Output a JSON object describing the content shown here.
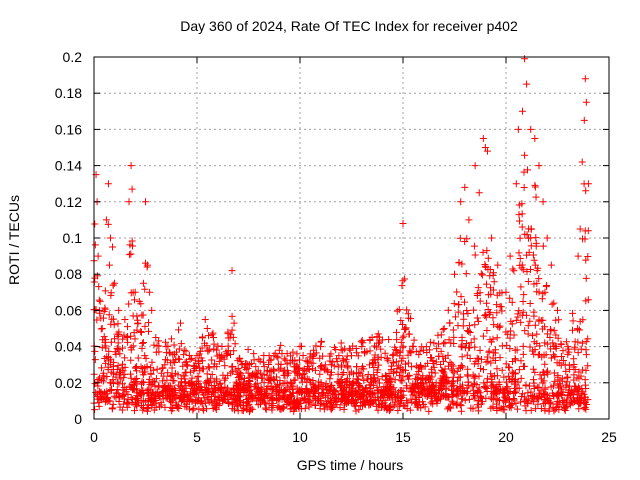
{
  "chart_data": {
    "type": "scatter",
    "title": "Day 360 of 2024, Rate Of TEC Index for receiver p402",
    "xlabel": "GPS time / hours",
    "ylabel": "ROTI / TECUs",
    "xlim": [
      0,
      25
    ],
    "ylim": [
      0,
      0.2
    ],
    "xticks": [
      "0",
      "5",
      "10",
      "15",
      "20",
      "25"
    ],
    "yticks": [
      "0",
      "0.02",
      "0.04",
      "0.06",
      "0.08",
      "0.1",
      "0.12",
      "0.14",
      "0.16",
      "0.18",
      "0.2"
    ],
    "grid": true,
    "marker": "+",
    "marker_color": "#ff0000",
    "series": [
      {
        "name": "ROTI",
        "points": [
          [
            0.1,
            0.135
          ],
          [
            0.15,
            0.12
          ],
          [
            0.2,
            0.09
          ],
          [
            0.3,
            0.065
          ],
          [
            0.4,
            0.05
          ],
          [
            0.6,
            0.11
          ],
          [
            0.7,
            0.13
          ],
          [
            0.75,
            0.085
          ],
          [
            0.8,
            0.1
          ],
          [
            0.9,
            0.095
          ],
          [
            1.0,
            0.075
          ],
          [
            1.2,
            0.06
          ],
          [
            1.5,
            0.055
          ],
          [
            1.6,
            0.045
          ],
          [
            1.7,
            0.12
          ],
          [
            1.8,
            0.14
          ],
          [
            1.85,
            0.127
          ],
          [
            2.0,
            0.07
          ],
          [
            2.2,
            0.065
          ],
          [
            2.4,
            0.075
          ],
          [
            2.5,
            0.12
          ],
          [
            2.6,
            0.085
          ],
          [
            2.7,
            0.07
          ],
          [
            2.8,
            0.06
          ],
          [
            3.0,
            0.045
          ],
          [
            3.5,
            0.04
          ],
          [
            4.2,
            0.053
          ],
          [
            4.5,
            0.03
          ],
          [
            5.0,
            0.035
          ],
          [
            5.4,
            0.055
          ],
          [
            5.5,
            0.05
          ],
          [
            5.8,
            0.045
          ],
          [
            6.2,
            0.035
          ],
          [
            6.5,
            0.048
          ],
          [
            6.7,
            0.082
          ],
          [
            6.8,
            0.053
          ],
          [
            7.2,
            0.03
          ],
          [
            8.0,
            0.033
          ],
          [
            8.5,
            0.035
          ],
          [
            9.0,
            0.038
          ],
          [
            10.0,
            0.04
          ],
          [
            10.5,
            0.036
          ],
          [
            11.0,
            0.04
          ],
          [
            11.5,
            0.036
          ],
          [
            12.0,
            0.042
          ],
          [
            12.5,
            0.035
          ],
          [
            13.0,
            0.04
          ],
          [
            13.5,
            0.045
          ],
          [
            13.8,
            0.047
          ],
          [
            14.5,
            0.035
          ],
          [
            15.0,
            0.108
          ],
          [
            15.5,
            0.04
          ],
          [
            16.0,
            0.038
          ],
          [
            16.5,
            0.042
          ],
          [
            17.0,
            0.05
          ],
          [
            17.5,
            0.08
          ],
          [
            17.8,
            0.12
          ],
          [
            18.0,
            0.128
          ],
          [
            18.2,
            0.11
          ],
          [
            18.5,
            0.14
          ],
          [
            18.7,
            0.125
          ],
          [
            18.9,
            0.155
          ],
          [
            19.0,
            0.15
          ],
          [
            19.1,
            0.148
          ],
          [
            19.3,
            0.1
          ],
          [
            19.6,
            0.085
          ],
          [
            20.0,
            0.07
          ],
          [
            20.2,
            0.09
          ],
          [
            20.5,
            0.13
          ],
          [
            20.6,
            0.16
          ],
          [
            20.8,
            0.17
          ],
          [
            20.9,
            0.199
          ],
          [
            21.0,
            0.185
          ],
          [
            21.2,
            0.16
          ],
          [
            21.4,
            0.155
          ],
          [
            21.6,
            0.14
          ],
          [
            21.8,
            0.12
          ],
          [
            22.0,
            0.1
          ],
          [
            22.2,
            0.085
          ],
          [
            22.5,
            0.06
          ],
          [
            23.0,
            0.04
          ],
          [
            23.5,
            0.09
          ],
          [
            23.6,
            0.105
          ],
          [
            23.7,
            0.142
          ],
          [
            23.8,
            0.165
          ],
          [
            23.85,
            0.188
          ],
          [
            23.9,
            0.175
          ],
          [
            24.0,
            0.13
          ]
        ]
      }
    ]
  }
}
